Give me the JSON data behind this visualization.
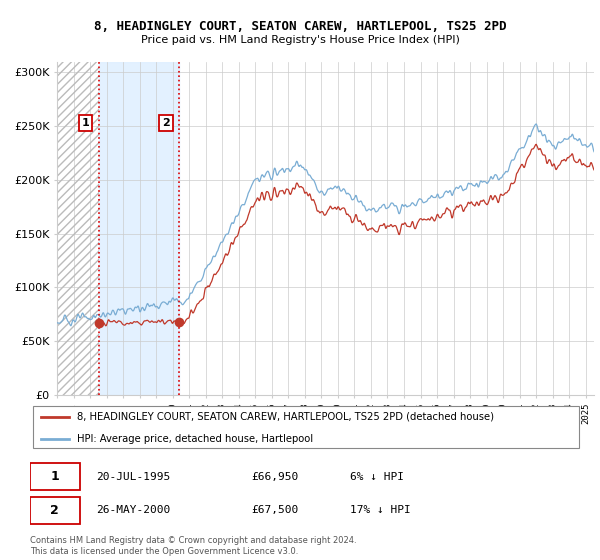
{
  "title_line1": "8, HEADINGLEY COURT, SEATON CAREW, HARTLEPOOL, TS25 2PD",
  "title_line2": "Price paid vs. HM Land Registry's House Price Index (HPI)",
  "legend_line1": "8, HEADINGLEY COURT, SEATON CAREW, HARTLEPOOL, TS25 2PD (detached house)",
  "legend_line2": "HPI: Average price, detached house, Hartlepool",
  "transaction1_date": "20-JUL-1995",
  "transaction1_price": "£66,950",
  "transaction1_hpi": "6% ↓ HPI",
  "transaction2_date": "26-MAY-2000",
  "transaction2_price": "£67,500",
  "transaction2_hpi": "17% ↓ HPI",
  "footer": "Contains HM Land Registry data © Crown copyright and database right 2024.\nThis data is licensed under the Open Government Licence v3.0.",
  "hpi_color": "#7aadd4",
  "price_color": "#c0392b",
  "shading_color": "#ddeeff",
  "transaction1_x": 1995.54,
  "transaction2_x": 2000.4,
  "transaction1_y": 66950,
  "transaction2_y": 67500,
  "ylim": [
    0,
    310000
  ],
  "xlim_start": 1993,
  "xlim_end": 2025.5
}
